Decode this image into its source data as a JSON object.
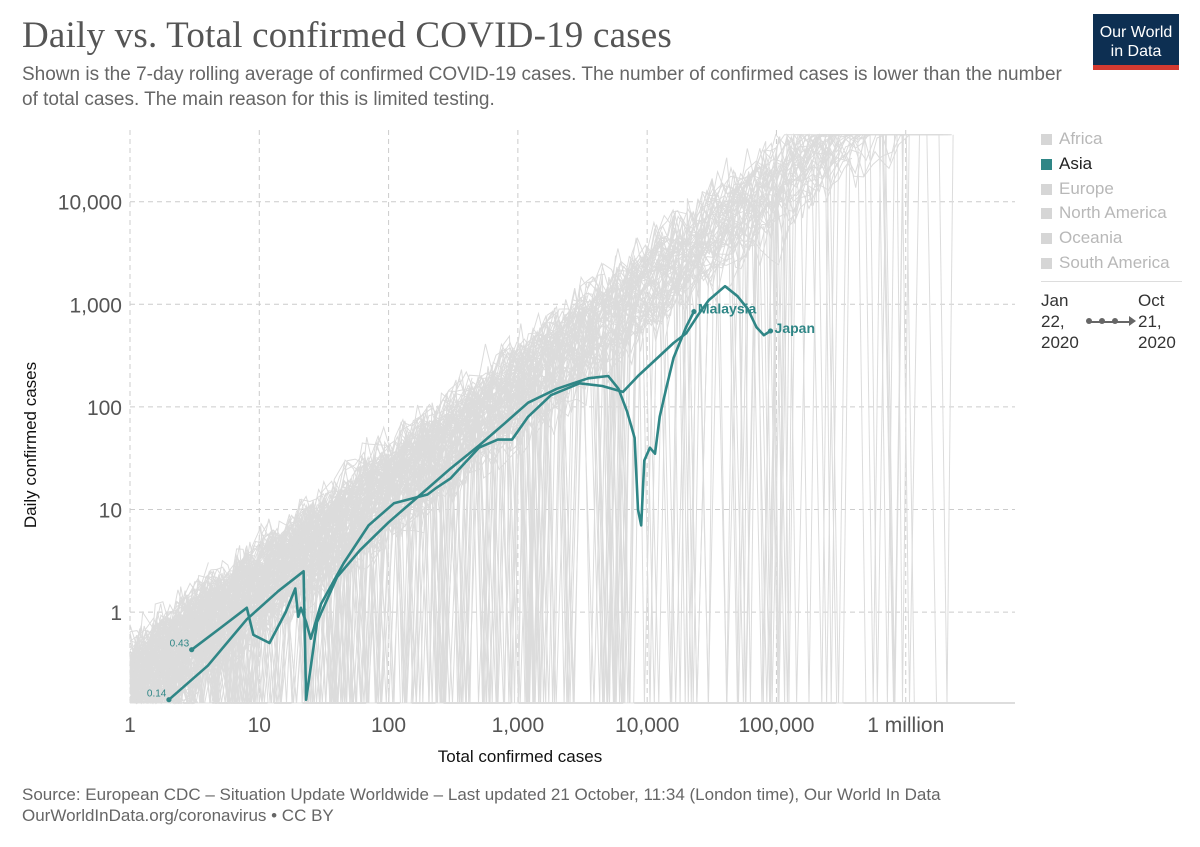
{
  "header": {
    "title": "Daily vs. Total confirmed COVID-19 cases",
    "subtitle": "Shown is the 7-day rolling average of confirmed COVID-19 cases. The number of confirmed cases is lower than the number of total cases. The main reason for this is limited testing.",
    "logo_line1": "Our World",
    "logo_line2": "in Data"
  },
  "legend": {
    "items": [
      {
        "label": "Africa",
        "active": false
      },
      {
        "label": "Asia",
        "active": true
      },
      {
        "label": "Europe",
        "active": false
      },
      {
        "label": "North America",
        "active": false
      },
      {
        "label": "Oceania",
        "active": false
      },
      {
        "label": "South America",
        "active": false
      }
    ]
  },
  "timeline": {
    "start_line1": "Jan",
    "start_line2": "22,",
    "start_line3": "2020",
    "end_line1": "Oct",
    "end_line2": "21,",
    "end_line3": "2020"
  },
  "footer": {
    "source": "Source: European CDC – Situation Update Worldwide – Last updated 21 October, 11:34 (London time), Our World In Data",
    "link": "OurWorldInData.org/coronavirus • CC BY"
  },
  "colors": {
    "highlight": "#2f8686",
    "background_lines": "#dcdcdc",
    "grid": "#cccccc",
    "logo_bg": "#0d2f52",
    "logo_bar": "#d33a31"
  },
  "chart_data": {
    "type": "line",
    "xlabel": "Total confirmed cases",
    "ylabel": "Daily confirmed cases",
    "x_scale": "log",
    "y_scale": "log",
    "xlim": [
      1,
      7000000
    ],
    "ylim": [
      0.13,
      50000
    ],
    "x_ticks": [
      1,
      10,
      100,
      1000,
      10000,
      100000,
      1000000
    ],
    "x_tick_labels": [
      "1",
      "10",
      "100",
      "1,000",
      "10,000",
      "100,000",
      "1 million"
    ],
    "y_ticks": [
      1,
      10,
      100,
      1000,
      10000
    ],
    "y_tick_labels": [
      "1",
      "10",
      "100",
      "1,000",
      "10,000"
    ],
    "grid": true,
    "series": [
      {
        "name": "Malaysia",
        "start_label": "0.14",
        "points": [
          [
            2,
            0.14
          ],
          [
            4,
            0.3
          ],
          [
            8,
            0.85
          ],
          [
            14,
            1.6
          ],
          [
            22,
            2.5
          ],
          [
            23,
            0.14
          ],
          [
            28,
            0.8
          ],
          [
            40,
            2.2
          ],
          [
            60,
            4
          ],
          [
            100,
            7.5
          ],
          [
            200,
            16
          ],
          [
            300,
            25
          ],
          [
            500,
            42
          ],
          [
            800,
            70
          ],
          [
            1200,
            110
          ],
          [
            2000,
            150
          ],
          [
            3500,
            190
          ],
          [
            5000,
            200
          ],
          [
            6000,
            150
          ],
          [
            7000,
            90
          ],
          [
            8000,
            50
          ],
          [
            8500,
            10
          ],
          [
            9000,
            7
          ],
          [
            9500,
            30
          ],
          [
            10500,
            40
          ],
          [
            11500,
            35
          ],
          [
            12500,
            80
          ],
          [
            14000,
            150
          ],
          [
            16000,
            300
          ],
          [
            20000,
            600
          ],
          [
            23000,
            850
          ]
        ]
      },
      {
        "name": "Japan",
        "start_label": "0.43",
        "points": [
          [
            3,
            0.43
          ],
          [
            5,
            0.7
          ],
          [
            8,
            1.1
          ],
          [
            9,
            0.6
          ],
          [
            12,
            0.5
          ],
          [
            16,
            1.0
          ],
          [
            19,
            1.7
          ],
          [
            20,
            0.9
          ],
          [
            21,
            1.1
          ],
          [
            23,
            0.8
          ],
          [
            25,
            0.55
          ],
          [
            30,
            1.2
          ],
          [
            45,
            3
          ],
          [
            70,
            7
          ],
          [
            110,
            11.5
          ],
          [
            200,
            14
          ],
          [
            230,
            16
          ],
          [
            300,
            20
          ],
          [
            500,
            40
          ],
          [
            700,
            48
          ],
          [
            900,
            48
          ],
          [
            1200,
            80
          ],
          [
            1800,
            130
          ],
          [
            3000,
            170
          ],
          [
            4500,
            160
          ],
          [
            6500,
            140
          ],
          [
            8500,
            200
          ],
          [
            12000,
            300
          ],
          [
            16000,
            420
          ],
          [
            20000,
            520
          ],
          [
            25000,
            800
          ],
          [
            30000,
            1100
          ],
          [
            40000,
            1500
          ],
          [
            50000,
            1200
          ],
          [
            60000,
            900
          ],
          [
            70000,
            600
          ],
          [
            80000,
            500
          ],
          [
            90000,
            550
          ]
        ]
      }
    ]
  }
}
